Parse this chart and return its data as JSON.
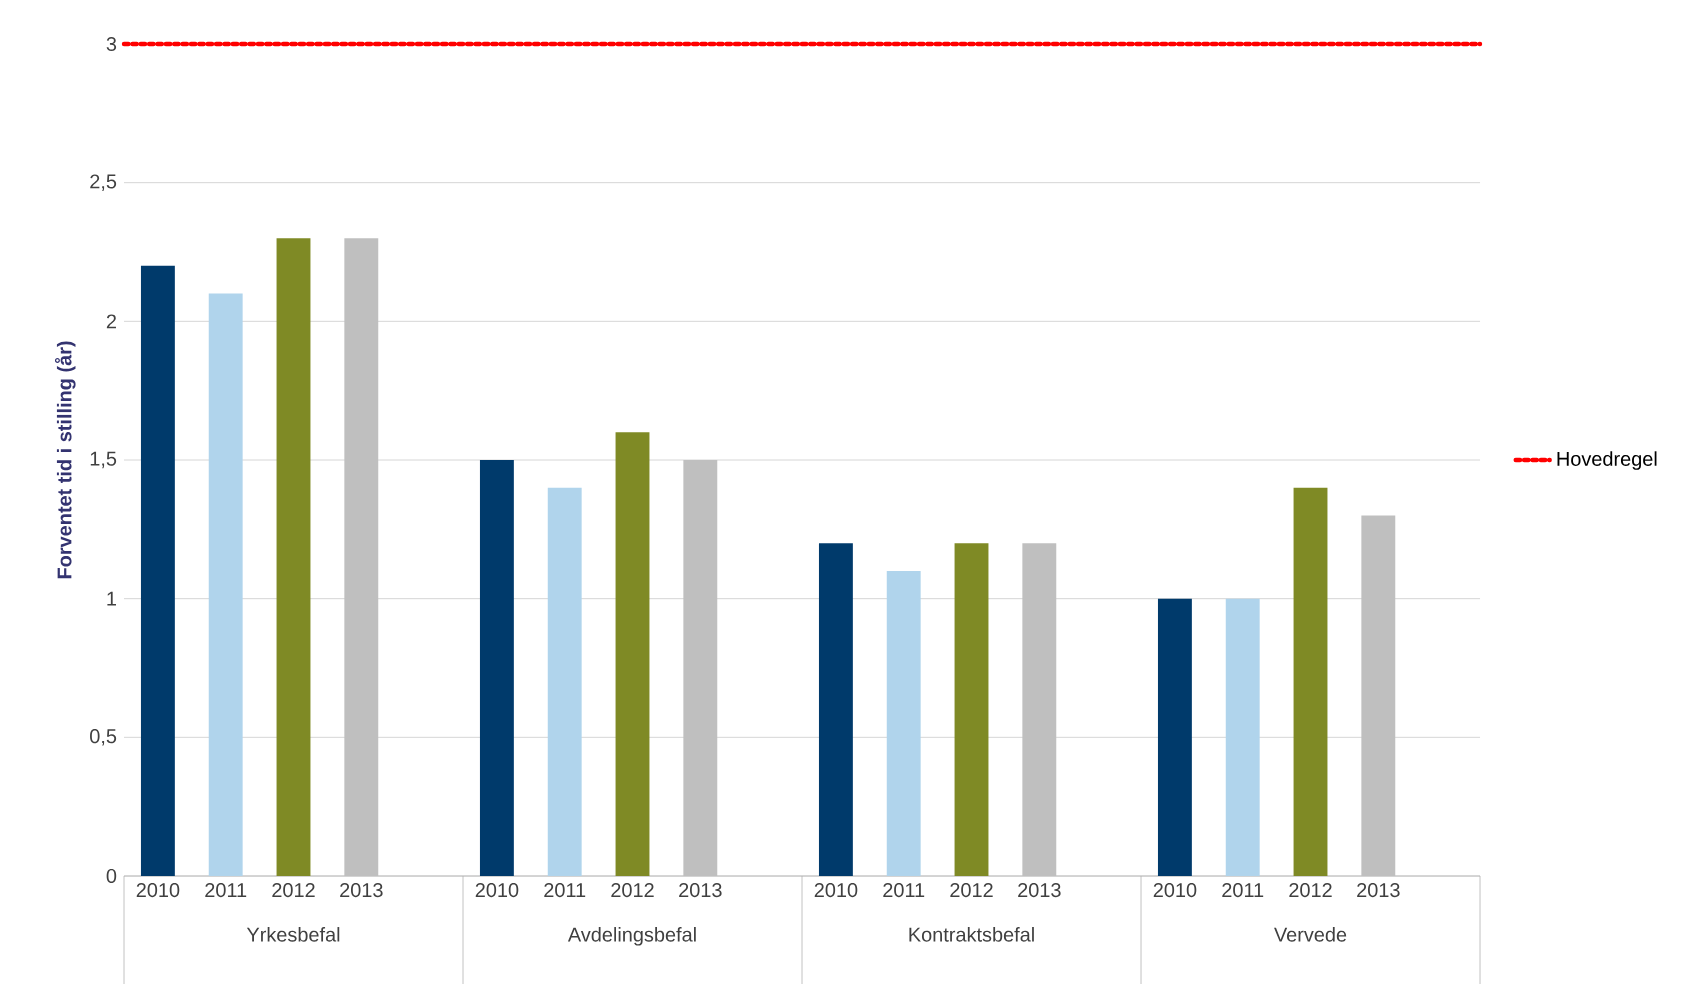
{
  "chart_data": {
    "type": "bar",
    "ylabel": "Forventet tid i stilling (år)",
    "categories": [
      "Yrkesbefal",
      "Avdelingsbefal",
      "Kontraktsbefal",
      "Vervede"
    ],
    "series": [
      {
        "name": "2010",
        "color": "#003a6b",
        "values": [
          2.2,
          1.5,
          1.2,
          1.0
        ]
      },
      {
        "name": "2011",
        "color": "#b0d4ec",
        "values": [
          2.1,
          1.4,
          1.1,
          1.0
        ]
      },
      {
        "name": "2012",
        "color": "#7f8a25",
        "values": [
          2.3,
          1.6,
          1.2,
          1.4
        ]
      },
      {
        "name": "2013",
        "color": "#bfbfbf",
        "values": [
          2.3,
          1.5,
          1.2,
          1.3
        ]
      }
    ],
    "ylim": [
      0,
      3
    ],
    "yticks": [
      0,
      {
        "value": 0.5,
        "label": "0,5"
      },
      1,
      {
        "value": 1.5,
        "label": "1,5"
      },
      2,
      {
        "value": 2.5,
        "label": "2,5"
      },
      3
    ],
    "ref_lines": [
      {
        "axis": "y",
        "value": 3,
        "label": "Hovedregel",
        "color": "#ff0000",
        "line_style": "dotted"
      }
    ],
    "grid": "y",
    "legend": "right"
  }
}
